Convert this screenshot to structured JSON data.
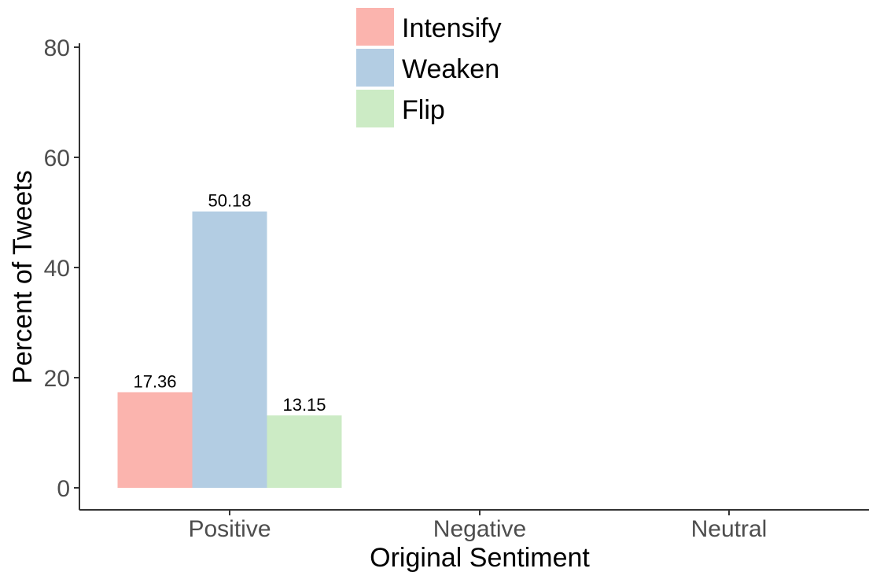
{
  "chart_data": {
    "type": "bar",
    "xlabel": "Original Sentiment",
    "ylabel": "Percent of Tweets",
    "ylim": [
      0,
      80
    ],
    "yticks": [
      0,
      20,
      40,
      60,
      80
    ],
    "categories": [
      "Positive",
      "Negative",
      "Neutral"
    ],
    "series": [
      {
        "name": "Intensify",
        "color": "#fbb4ae",
        "values": [
          17.36,
          null,
          null
        ],
        "labels": [
          "17.36",
          null,
          null
        ]
      },
      {
        "name": "Weaken",
        "color": "#b3cde3",
        "values": [
          50.18,
          null,
          null
        ],
        "labels": [
          "50.18",
          null,
          null
        ]
      },
      {
        "name": "Flip",
        "color": "#ccebc5",
        "values": [
          13.15,
          null,
          null
        ],
        "labels": [
          "13.15",
          null,
          null
        ]
      }
    ],
    "legend_position": "top-center",
    "grid": false
  }
}
